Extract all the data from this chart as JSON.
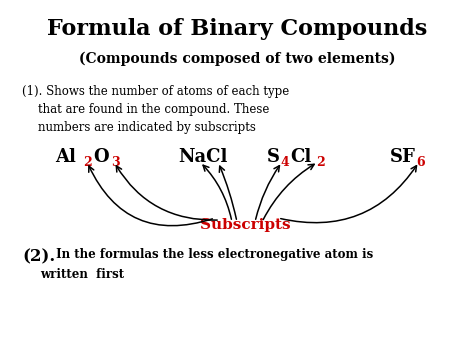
{
  "title": "Formula of Binary Compounds",
  "subtitle": "(Compounds composed of two elements)",
  "bg_color": "#ffffff",
  "black": "#000000",
  "red": "#cc0000",
  "p1_l1": "(1). Shows the number of atoms of each type",
  "p1_l2": "that are found in the compound. These",
  "p1_l3": "numbers are indicated by subscripts",
  "subscripts_label": "Subscripts",
  "p2_bold": "(2).",
  "p2_rest": " In the formulas the less electronegative atom is",
  "p2_l2": "written  first"
}
